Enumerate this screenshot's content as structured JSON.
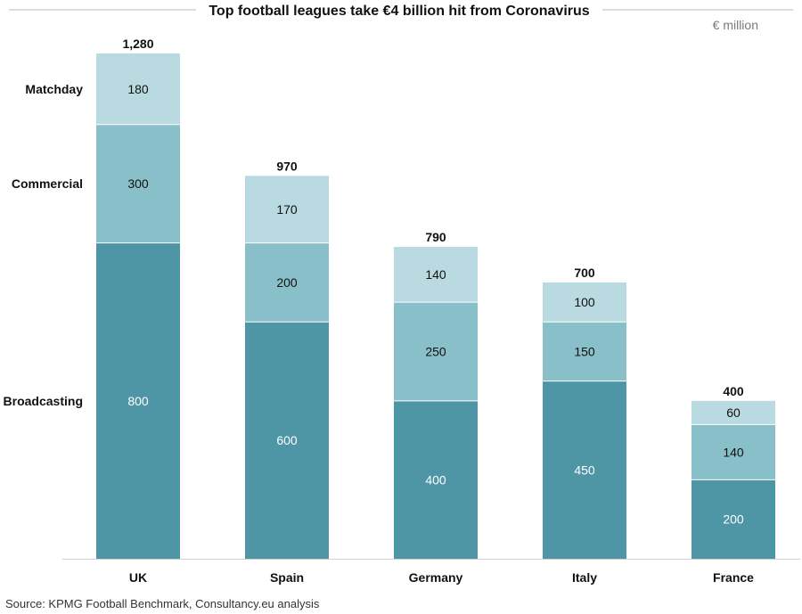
{
  "chart_data": {
    "type": "bar",
    "stacked": true,
    "title": "Top football leagues take €4 billion hit from Coronavirus",
    "unit_label": "€ million",
    "categories": [
      "UK",
      "Spain",
      "Germany",
      "Italy",
      "France"
    ],
    "series": [
      {
        "name": "Broadcasting",
        "values": [
          800,
          600,
          400,
          450,
          200
        ],
        "color": "#4e95a5",
        "label_color": "#ffffff"
      },
      {
        "name": "Commercial",
        "values": [
          300,
          200,
          250,
          150,
          140
        ],
        "color": "#89bfc8",
        "label_color": "#111111"
      },
      {
        "name": "Matchday",
        "values": [
          180,
          170,
          140,
          100,
          60
        ],
        "color": "#b8dae0",
        "label_color": "#111111"
      }
    ],
    "totals": [
      "1,280",
      "970",
      "790",
      "700",
      "400"
    ],
    "ylim": [
      0,
      1280
    ],
    "source": "Source: KPMG Football Benchmark, Consultancy.eu analysis"
  }
}
